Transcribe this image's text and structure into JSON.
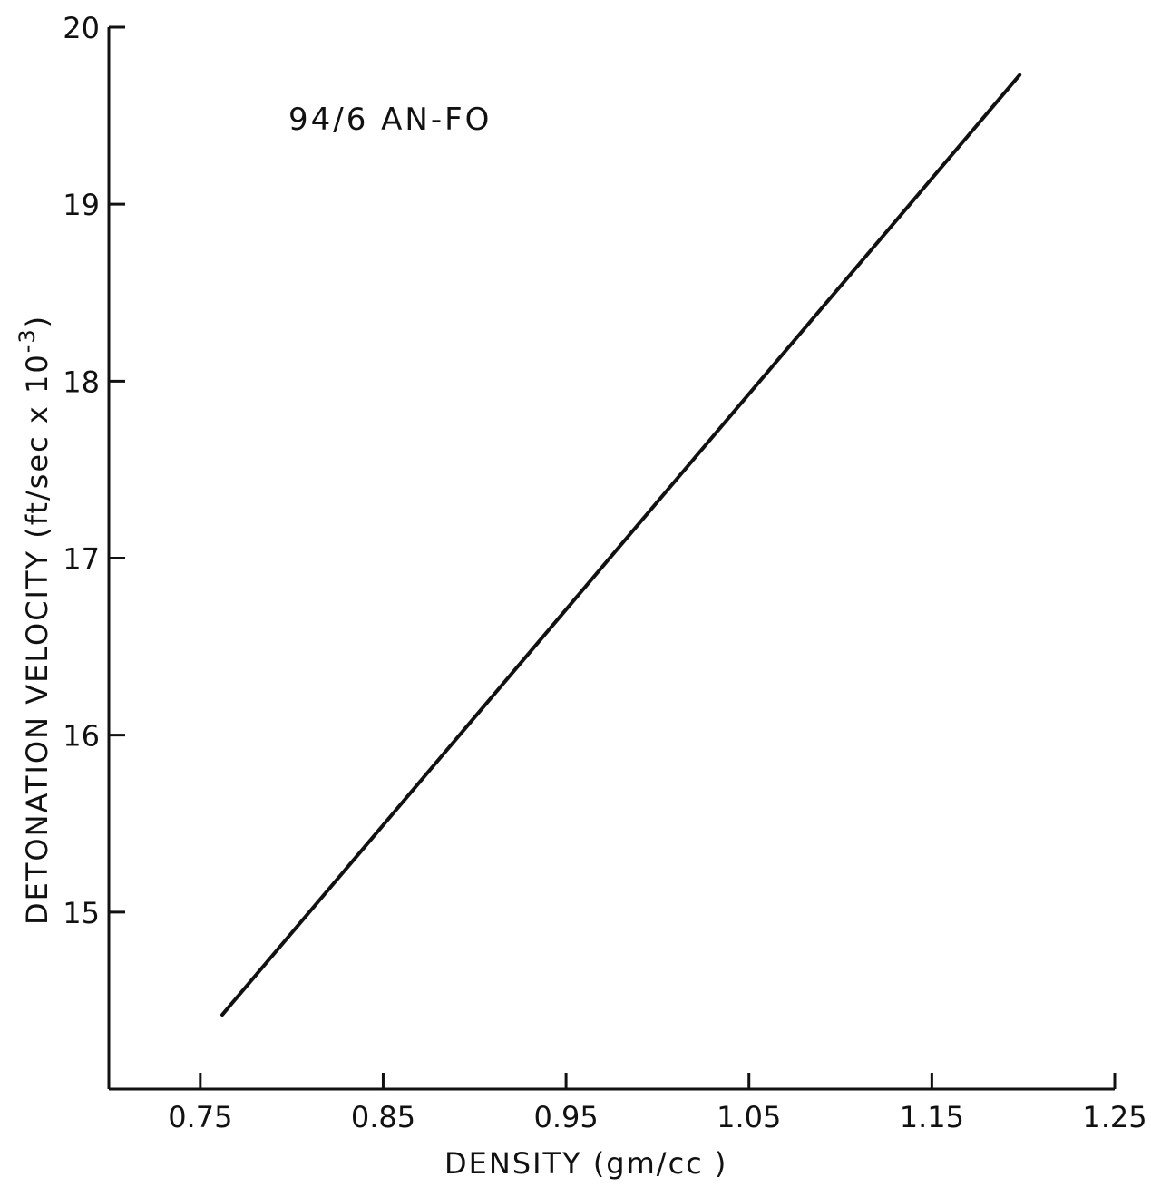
{
  "chart_data": {
    "type": "line",
    "title": "",
    "annotation": "94/6  AN-FO",
    "xlabel": "DENSITY   (gm/cc )",
    "ylabel": "DETONATION   VELOCITY  (ft/sec x 10",
    "ylabel_superscript": "-3",
    "ylabel_close": ")",
    "xlim": [
      0.7,
      1.25
    ],
    "ylim": [
      14.0,
      20.0
    ],
    "x_ticks": [
      0.75,
      0.85,
      0.95,
      1.05,
      1.15,
      1.25
    ],
    "x_tick_labels": [
      "0.75",
      "0.85",
      "0.95",
      "1.05",
      "1.15",
      "1.25"
    ],
    "y_ticks": [
      15,
      16,
      17,
      18,
      19,
      20
    ],
    "y_tick_labels": [
      "15",
      "16",
      "17",
      "18",
      "19",
      "20"
    ],
    "grid": false,
    "series": [
      {
        "x": [
          0.762,
          1.198
        ],
        "y": [
          14.42,
          19.73
        ]
      }
    ]
  }
}
